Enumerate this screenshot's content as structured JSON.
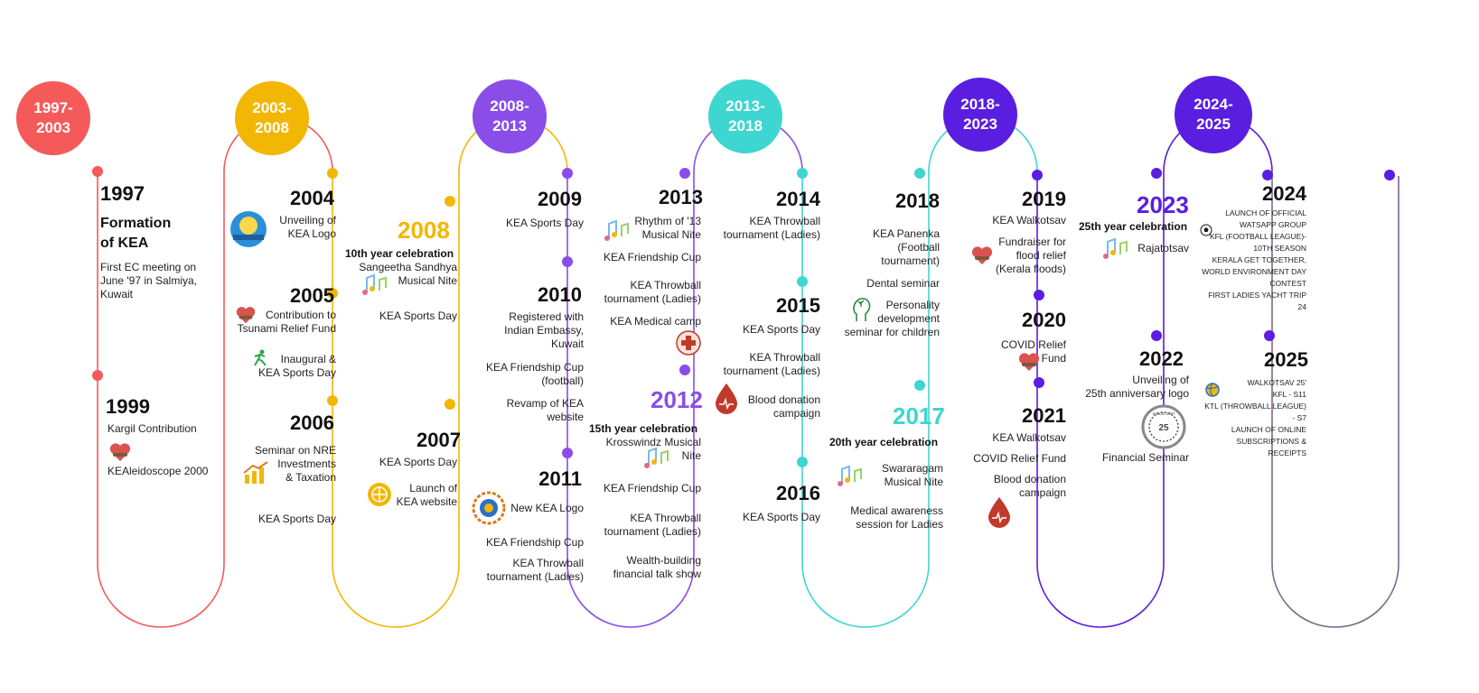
{
  "colors": {
    "red": "#f55a5a",
    "yellow": "#f2b705",
    "purple": "#8a4de8",
    "teal": "#3dd6d0",
    "violet": "#5a1ee0",
    "deep": "#4b1fd6",
    "gray": "#7a6a8a"
  },
  "eras": [
    "1997-\n2003",
    "2003-\n2008",
    "2008-\n2013",
    "2013-\n2018",
    "2018-\n2023",
    "2024-\n2025"
  ],
  "s1": {
    "y1997": "1997",
    "formation": "Formation\nof KEA",
    "ec": "First EC meeting on\nJune '97 in Salmiya,\nKuwait",
    "y1999": "1999",
    "kargil": "Kargil Contribution",
    "kealeido": "KEAleidoscope 2000"
  },
  "s2": {
    "y2004": "2004",
    "logo": "Unveiling of\nKEA Logo",
    "y2005": "2005",
    "tsunami": "Contribution to\nTsunami Relief Fund",
    "inaugural": "Inaugural &\nKEA Sports Day",
    "y2006": "2006",
    "nre": "Seminar on NRE\nInvestments\n& Taxation",
    "sports": "KEA Sports Day"
  },
  "s3": {
    "y2008": "2008",
    "tenth": "10th year celebration",
    "sangeetha": "Sangeetha Sandhya\nMusical Nite",
    "sports": "KEA Sports Day",
    "y2007": "2007",
    "sports07": "KEA Sports Day",
    "website": "Launch of\nKEA website"
  },
  "s4": {
    "y2009": "2009",
    "sports": "KEA Sports Day",
    "y2010": "2010",
    "embassy": "Registered with\nIndian Embassy,\nKuwait",
    "friendship": "KEA Friendship Cup\n(football)",
    "revamp": "Revamp of KEA\nwebsite",
    "y2011": "2011",
    "newlogo": "New KEA Logo",
    "friendship11": "KEA Friendship Cup",
    "throwball": "KEA Throwball\ntournament (Ladies)"
  },
  "s5": {
    "y2013": "2013",
    "rhythm": "Rhythm of '13\nMusical Nite",
    "friendship": "KEA Friendship Cup",
    "throwball": "KEA Throwball\ntournament (Ladies)",
    "medical": "KEA Medical camp",
    "y2012": "2012",
    "fifteenth": "15th year celebration",
    "krosswindz": "Krosswindz Musical\nNite",
    "friendship12": "KEA Friendship Cup",
    "throwball12": "KEA Throwball\ntournament (Ladies)",
    "wealth": "Wealth-building\nfinancial talk show"
  },
  "s6": {
    "y2014": "2014",
    "throwball": "KEA Throwball\ntournament (Ladies)",
    "y2015": "2015",
    "sports": "KEA Sports Day",
    "throwball15": "KEA Throwball\ntournament (Ladies)",
    "blood": "Blood donation\ncampaign",
    "y2016": "2016",
    "sports16": "KEA Sports Day"
  },
  "s7": {
    "y2018": "2018",
    "panenka": "KEA Panenka\n(Football\ntournament)",
    "dental": "Dental seminar",
    "personality": "Personality\ndevelopment\nseminar for children",
    "y2017": "2017",
    "twentieth": "20th year celebration",
    "swararagam": "Swararagam\nMusical Nite",
    "awareness": "Medical awareness\nsession for Ladies"
  },
  "s8": {
    "y2019": "2019",
    "walkotsav": "KEA Walkotsav",
    "flood": "Fundraiser for\nflood relief\n(Kerala floods)",
    "y2020": "2020",
    "covid": "COVID Relief\nFund",
    "y2021": "2021",
    "walkotsav21": "KEA Walkotsav",
    "covid21": "COVID Relief Fund",
    "blood": "Blood donation\ncampaign"
  },
  "s9": {
    "y2023": "2023",
    "twentyfifth": "25th year celebration",
    "rajatotsav": "Rajatotsav",
    "y2022": "2022",
    "anniv": "Unveiling of\n25th anniversary logo",
    "financial": "Financial Seminar"
  },
  "s10": {
    "y2024": "2024",
    "items24": "LAUNCH OF OFFICIAL\nWATSAPP GROUP\nKFL (FOOTBALL LEAGUE)-\n10TH SEASON\nKERALA GET TOGETHER,\nWORLD ENVIRONMENT DAY\nCONTEST\nFIRST LADIES YACHT TRIP 24",
    "y2025": "2025",
    "items25": "WALKOTSAV 25'\nKFL - S11\nKTL (THROWBALL LEAGUE) - S7\nLAUNCH OF ONLINE\nSUBSCRIPTIONS & RECEIPTS"
  },
  "logos": {
    "kea_logo_text": "KEA",
    "since": "SINCE 1997"
  }
}
